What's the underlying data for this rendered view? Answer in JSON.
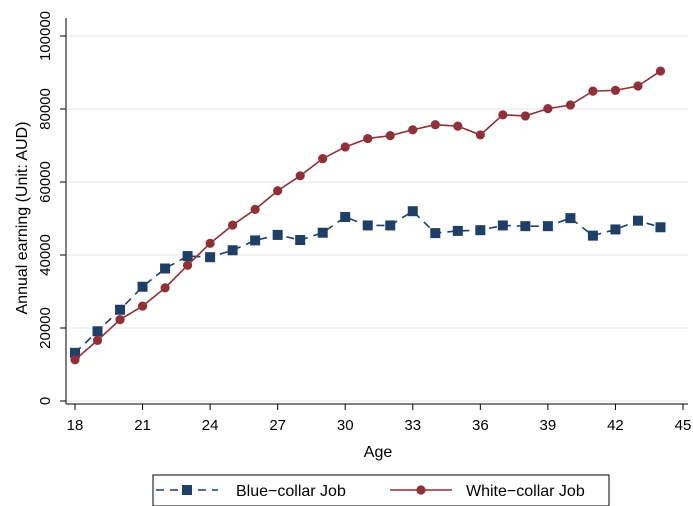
{
  "chart_data": {
    "type": "line",
    "title": "",
    "xlabel": "Age",
    "ylabel": "Annual earning (Unit: AUD)",
    "xlim": [
      18,
      45
    ],
    "ylim": [
      0,
      100000
    ],
    "x_ticks": [
      "18",
      "21",
      "24",
      "27",
      "30",
      "33",
      "36",
      "39",
      "42",
      "45"
    ],
    "y_ticks": [
      "0",
      "20000",
      "40000",
      "60000",
      "80000",
      "100000"
    ],
    "grid": true,
    "legend_position": "bottom",
    "x": [
      18,
      19,
      20,
      21,
      22,
      23,
      24,
      25,
      26,
      27,
      28,
      29,
      30,
      31,
      32,
      33,
      34,
      35,
      36,
      37,
      38,
      39,
      40,
      41,
      42,
      43,
      44
    ],
    "series": [
      {
        "name": "Blue−collar Job",
        "color": "#1f3f66",
        "line_style": "dashed",
        "marker": "square",
        "values": [
          13200,
          19100,
          25000,
          31300,
          36300,
          39700,
          39400,
          41300,
          44000,
          45500,
          44100,
          46100,
          50400,
          48100,
          48100,
          52000,
          46000,
          46600,
          46800,
          48100,
          47900,
          47900,
          50100,
          45300,
          47000,
          49400,
          47600
        ]
      },
      {
        "name": "White−collar Job",
        "color": "#903038",
        "line_style": "solid",
        "marker": "circle",
        "values": [
          11300,
          16600,
          22300,
          26000,
          31000,
          37200,
          43200,
          48200,
          52500,
          57600,
          61700,
          66400,
          69600,
          71900,
          72700,
          74300,
          75700,
          75300,
          72900,
          78400,
          78100,
          80100,
          81100,
          84900,
          85100,
          86300,
          90400
        ]
      }
    ]
  }
}
